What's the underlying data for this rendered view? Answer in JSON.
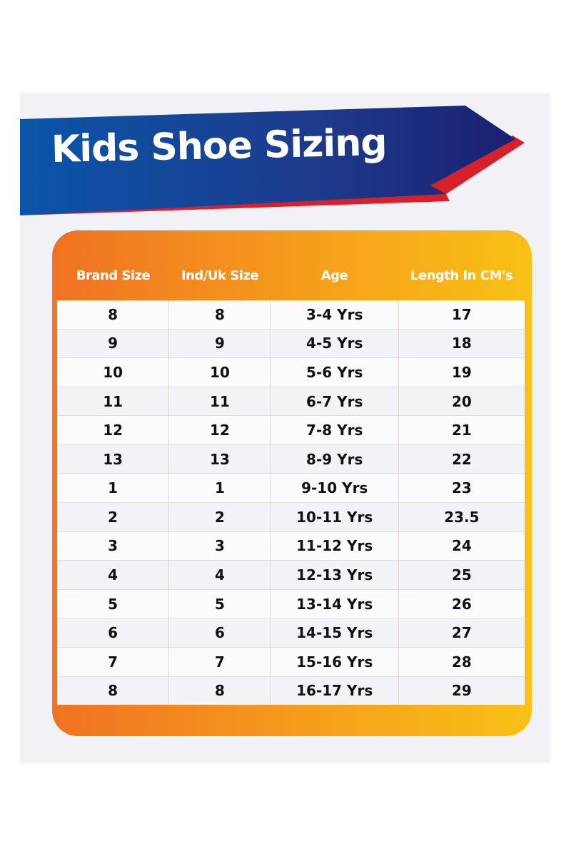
{
  "title": "Kids Shoe Sizing",
  "colors": {
    "banner_blue": "#1b2a7a",
    "banner_blue_light": "#0a55a8",
    "banner_red": "#d8202a",
    "card_orange": "#f07222",
    "card_yellow": "#f8c116",
    "panel": "#f1f1f6"
  },
  "table": {
    "headers": [
      "Brand Size",
      "Ind/Uk Size",
      "Age",
      "Length In CM's"
    ],
    "rows": [
      [
        "8",
        "8",
        "3-4 Yrs",
        "17"
      ],
      [
        "9",
        "9",
        "4-5 Yrs",
        "18"
      ],
      [
        "10",
        "10",
        "5-6 Yrs",
        "19"
      ],
      [
        "11",
        "11",
        "6-7 Yrs",
        "20"
      ],
      [
        "12",
        "12",
        "7-8 Yrs",
        "21"
      ],
      [
        "13",
        "13",
        "8-9 Yrs",
        "22"
      ],
      [
        "1",
        "1",
        "9-10 Yrs",
        "23"
      ],
      [
        "2",
        "2",
        "10-11 Yrs",
        "23.5"
      ],
      [
        "3",
        "3",
        "11-12 Yrs",
        "24"
      ],
      [
        "4",
        "4",
        "12-13 Yrs",
        "25"
      ],
      [
        "5",
        "5",
        "13-14 Yrs",
        "26"
      ],
      [
        "6",
        "6",
        "14-15 Yrs",
        "27"
      ],
      [
        "7",
        "7",
        "15-16 Yrs",
        "28"
      ],
      [
        "8",
        "8",
        "16-17 Yrs",
        "29"
      ]
    ]
  }
}
